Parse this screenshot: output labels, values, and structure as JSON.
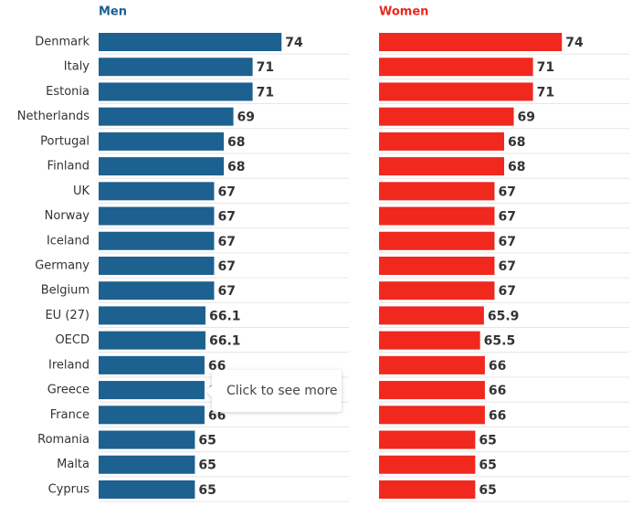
{
  "chart_data": {
    "type": "bar",
    "orientation": "horizontal",
    "categories": [
      "Denmark",
      "Italy",
      "Estonia",
      "Netherlands",
      "Portugal",
      "Finland",
      "UK",
      "Norway",
      "Iceland",
      "Germany",
      "Belgium",
      "EU (27)",
      "OECD",
      "Ireland",
      "Greece",
      "France",
      "Romania",
      "Malta",
      "Cyprus"
    ],
    "series": [
      {
        "name": "Men",
        "color": "#1c6190",
        "values": [
          74,
          71,
          71,
          69,
          68,
          68,
          67,
          67,
          67,
          67,
          67,
          66.1,
          66.1,
          66,
          66,
          66,
          65,
          65,
          65
        ]
      },
      {
        "name": "Women",
        "color": "#f0281e",
        "values": [
          74,
          71,
          71,
          69,
          68,
          68,
          67,
          67,
          67,
          67,
          67,
          65.9,
          65.5,
          66,
          66,
          66,
          65,
          65,
          65
        ]
      }
    ],
    "xlim": [
      55,
      81
    ],
    "tooltip": "Click to see more"
  }
}
